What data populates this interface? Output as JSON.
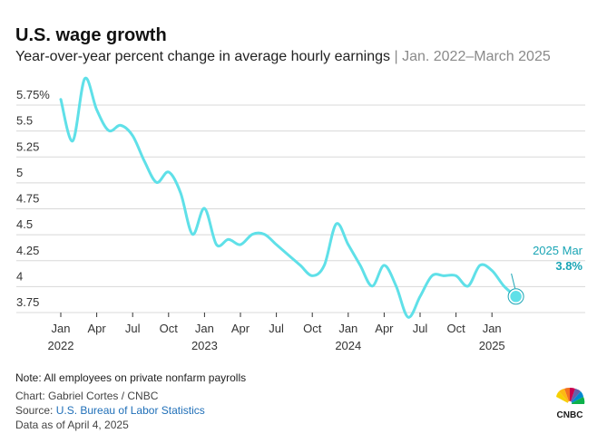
{
  "header": {
    "title": "U.S. wage growth",
    "subtitle_main": "Year-over-year percent change in average hourly earnings",
    "subtitle_sep": "|",
    "subtitle_range": "Jan. 2022–March 2025"
  },
  "chart_data": {
    "type": "line",
    "title": "U.S. wage growth",
    "subtitle": "Year-over-year percent change in average hourly earnings | Jan. 2022–March 2025",
    "xlabel": "",
    "ylabel": "",
    "ylim": [
      3.75,
      5.75
    ],
    "grid": true,
    "legend": "none",
    "y_ticks": [
      "5.75%",
      "5.5",
      "5.25",
      "5",
      "4.75",
      "4.5",
      "4.25",
      "4",
      "3.75"
    ],
    "y_tick_values": [
      5.75,
      5.5,
      5.25,
      5,
      4.75,
      4.5,
      4.25,
      4,
      3.75
    ],
    "x_ticks": [
      {
        "month": "Jan",
        "year": "2022",
        "index": 0
      },
      {
        "month": "Apr",
        "year": "",
        "index": 3
      },
      {
        "month": "Jul",
        "year": "",
        "index": 6
      },
      {
        "month": "Oct",
        "year": "",
        "index": 9
      },
      {
        "month": "Jan",
        "year": "2023",
        "index": 12
      },
      {
        "month": "Apr",
        "year": "",
        "index": 15
      },
      {
        "month": "Jul",
        "year": "",
        "index": 18
      },
      {
        "month": "Oct",
        "year": "",
        "index": 21
      },
      {
        "month": "Jan",
        "year": "2024",
        "index": 24
      },
      {
        "month": "Apr",
        "year": "",
        "index": 27
      },
      {
        "month": "Jul",
        "year": "",
        "index": 30
      },
      {
        "month": "Oct",
        "year": "",
        "index": 33
      },
      {
        "month": "Jan",
        "year": "2025",
        "index": 36
      }
    ],
    "series": [
      {
        "color": "#5fe0e8",
        "x": [
          "2022-01",
          "2022-02",
          "2022-03",
          "2022-04",
          "2022-05",
          "2022-06",
          "2022-07",
          "2022-08",
          "2022-09",
          "2022-10",
          "2022-11",
          "2022-12",
          "2023-01",
          "2023-02",
          "2023-03",
          "2023-04",
          "2023-05",
          "2023-06",
          "2023-07",
          "2023-08",
          "2023-09",
          "2023-10",
          "2023-11",
          "2023-12",
          "2024-01",
          "2024-02",
          "2024-03",
          "2024-04",
          "2024-05",
          "2024-06",
          "2024-07",
          "2024-08",
          "2024-09",
          "2024-10",
          "2024-11",
          "2024-12",
          "2025-01",
          "2025-02",
          "2025-03"
        ],
        "values": [
          5.7,
          5.3,
          5.9,
          5.6,
          5.4,
          5.45,
          5.35,
          5.1,
          4.9,
          5.0,
          4.8,
          4.4,
          4.65,
          4.3,
          4.35,
          4.3,
          4.4,
          4.4,
          4.3,
          4.2,
          4.1,
          4.0,
          4.1,
          4.5,
          4.3,
          4.1,
          3.9,
          4.1,
          3.9,
          3.6,
          3.8,
          4.0,
          4.0,
          4.0,
          3.9,
          4.1,
          4.05,
          3.9,
          3.8
        ]
      }
    ],
    "annotation": {
      "label": "2025 Mar",
      "value": "3.8%",
      "index": 38
    }
  },
  "footer": {
    "note": "Note: All employees on private nonfarm payrolls",
    "chart_credit": "Chart: Gabriel Cortes / CNBC",
    "source_prefix": "Source: ",
    "source_link": "U.S. Bureau of Labor Statistics",
    "data_as_of": "Data as of April 4, 2025",
    "logo_text": "CNBC"
  },
  "colors": {
    "line": "#5fe0e8",
    "annotation": "#1aa5b5",
    "grid": "#d8d8d8",
    "link": "#1f6fb8"
  }
}
